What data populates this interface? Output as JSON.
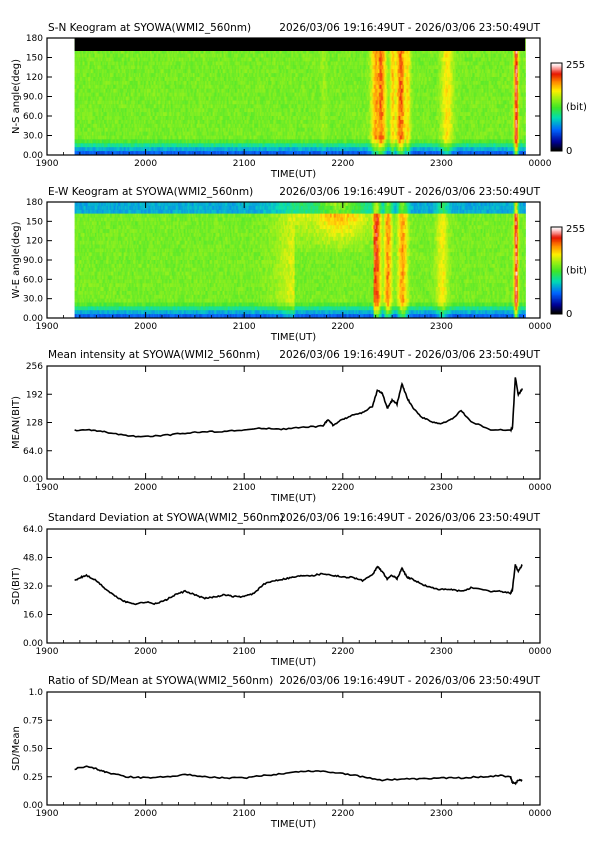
{
  "chart_data": [
    {
      "type": "heatmap",
      "title": "S-N Keogram at SYOWA(WMI2_560nm)",
      "time_range": "2026/03/06 19:16:49UT - 2026/03/06 23:50:49UT",
      "xlabel": "TIME(UT)",
      "ylabel": "N-S angle(deg)",
      "x_ticks": [
        "1900",
        "2000",
        "2100",
        "2200",
        "2300",
        "0000"
      ],
      "y_ticks": [
        "0.00",
        "30.0",
        "60.0",
        "90.0",
        "120",
        "150",
        "180"
      ],
      "ylim": [
        0,
        180
      ],
      "colorbar": {
        "min_label": "0",
        "max_label": "255",
        "unit_label": "(bit)"
      },
      "data_start_hour": 19.28,
      "data_end_hour": 23.85,
      "bright_bands": [
        {
          "t": 21.8,
          "w": 0.03,
          "v": 150
        },
        {
          "t": 22.33,
          "w": 0.05,
          "v": 200
        },
        {
          "t": 22.38,
          "w": 0.05,
          "v": 215
        },
        {
          "t": 22.5,
          "w": 0.03,
          "v": 190
        },
        {
          "t": 22.58,
          "w": 0.05,
          "v": 215
        },
        {
          "t": 22.65,
          "w": 0.03,
          "v": 185
        },
        {
          "t": 23.05,
          "w": 0.06,
          "v": 180
        },
        {
          "t": 23.75,
          "w": 0.02,
          "v": 245
        }
      ]
    },
    {
      "type": "heatmap",
      "title": "E-W Keogram at SYOWA(WMI2_560nm)",
      "time_range": "2026/03/06 19:16:49UT - 2026/03/06 23:50:49UT",
      "xlabel": "TIME(UT)",
      "ylabel": "W-E angle(deg)",
      "x_ticks": [
        "1900",
        "2000",
        "2100",
        "2200",
        "2300",
        "0000"
      ],
      "y_ticks": [
        "0.00",
        "30.0",
        "60.0",
        "90.0",
        "120",
        "150",
        "180"
      ],
      "ylim": [
        0,
        180
      ],
      "colorbar": {
        "min_label": "0",
        "max_label": "255",
        "unit_label": "(bit)"
      },
      "data_start_hour": 19.28,
      "data_end_hour": 23.85,
      "bright_bands": [
        {
          "t": 21.6,
          "w": 0.25,
          "v": 175
        },
        {
          "t": 21.95,
          "w": 0.3,
          "v": 210
        },
        {
          "t": 22.33,
          "w": 0.05,
          "v": 225
        },
        {
          "t": 22.45,
          "w": 0.04,
          "v": 205
        },
        {
          "t": 22.6,
          "w": 0.05,
          "v": 200
        },
        {
          "t": 23.0,
          "w": 0.06,
          "v": 175
        },
        {
          "t": 23.75,
          "w": 0.02,
          "v": 245
        }
      ]
    },
    {
      "type": "line",
      "title": "Mean intensity at SYOWA(WMI2_560nm)",
      "time_range": "2026/03/06 19:16:49UT - 2026/03/06 23:50:49UT",
      "xlabel": "TIME(UT)",
      "ylabel": "MEAN(BIT)",
      "x_ticks": [
        "1900",
        "2000",
        "2100",
        "2200",
        "2300",
        "0000"
      ],
      "y_ticks": [
        "0.00",
        "64.0",
        "128",
        "192",
        "256"
      ],
      "ylim": [
        0,
        256
      ],
      "series": [
        {
          "x": [
            19.28,
            19.45,
            19.6,
            19.8,
            20.0,
            20.2,
            20.4,
            20.6,
            20.8,
            21.0,
            21.2,
            21.4,
            21.6,
            21.8,
            21.85,
            21.9,
            22.0,
            22.1,
            22.2,
            22.3,
            22.35,
            22.4,
            22.45,
            22.5,
            22.55,
            22.6,
            22.65,
            22.7,
            22.8,
            22.9,
            23.0,
            23.1,
            23.2,
            23.3,
            23.5,
            23.7,
            23.72,
            23.75,
            23.78,
            23.82
          ],
          "y": [
            110,
            111,
            106,
            98,
            96,
            99,
            104,
            107,
            108,
            111,
            115,
            113,
            117,
            120,
            135,
            122,
            135,
            145,
            150,
            165,
            200,
            195,
            160,
            178,
            170,
            215,
            185,
            165,
            140,
            130,
            125,
            135,
            155,
            130,
            112,
            110,
            115,
            230,
            190,
            205
          ]
        }
      ]
    },
    {
      "type": "line",
      "title": "Standard Deviation at SYOWA(WMI2_560nm)",
      "time_range": "2026/03/06 19:16:49UT - 2026/03/06 23:50:49UT",
      "xlabel": "TIME(UT)",
      "ylabel": "SD(BIT)",
      "x_ticks": [
        "1900",
        "2000",
        "2100",
        "2200",
        "2300",
        "0000"
      ],
      "y_ticks": [
        "0.00",
        "16.0",
        "32.0",
        "48.0",
        "64.0"
      ],
      "ylim": [
        0,
        64
      ],
      "series": [
        {
          "x": [
            19.28,
            19.35,
            19.4,
            19.5,
            19.6,
            19.7,
            19.8,
            19.9,
            20.0,
            20.1,
            20.2,
            20.3,
            20.4,
            20.5,
            20.6,
            20.7,
            20.8,
            20.9,
            21.0,
            21.1,
            21.2,
            21.3,
            21.4,
            21.5,
            21.6,
            21.7,
            21.8,
            21.9,
            22.0,
            22.1,
            22.2,
            22.3,
            22.35,
            22.4,
            22.45,
            22.5,
            22.55,
            22.6,
            22.65,
            22.7,
            22.8,
            22.9,
            23.0,
            23.1,
            23.2,
            23.3,
            23.5,
            23.6,
            23.7,
            23.72,
            23.75,
            23.78,
            23.82
          ],
          "y": [
            35,
            37,
            38,
            35,
            30,
            26,
            23,
            22,
            23,
            22,
            24,
            27,
            29,
            27,
            25,
            26,
            27,
            26,
            26,
            28,
            33,
            35,
            36,
            37,
            38,
            38,
            39,
            38,
            37,
            37,
            35,
            38,
            43,
            40,
            36,
            38,
            36,
            42,
            37,
            36,
            33,
            31,
            30,
            30,
            29,
            31,
            29,
            29,
            28,
            30,
            44,
            40,
            44
          ]
        }
      ]
    },
    {
      "type": "line",
      "title": "Ratio of SD/Mean at SYOWA(WMI2_560nm)",
      "time_range": "2026/03/06 19:16:49UT - 2026/03/06 23:50:49UT",
      "xlabel": "TIME(UT)",
      "ylabel": "SD/Mean",
      "x_ticks": [
        "1900",
        "2000",
        "2100",
        "2200",
        "2300",
        "0000"
      ],
      "y_ticks": [
        "0.00",
        "0.25",
        "0.50",
        "0.75",
        "1.0"
      ],
      "ylim": [
        0,
        1
      ],
      "series": [
        {
          "x": [
            19.28,
            19.4,
            19.5,
            19.6,
            19.8,
            20.0,
            20.2,
            20.4,
            20.6,
            20.8,
            21.0,
            21.2,
            21.4,
            21.6,
            21.8,
            22.0,
            22.2,
            22.4,
            22.6,
            22.8,
            23.0,
            23.2,
            23.4,
            23.6,
            23.7,
            23.72,
            23.75,
            23.78,
            23.82
          ],
          "y": [
            0.32,
            0.34,
            0.32,
            0.29,
            0.25,
            0.24,
            0.25,
            0.27,
            0.25,
            0.24,
            0.24,
            0.26,
            0.28,
            0.3,
            0.3,
            0.28,
            0.25,
            0.22,
            0.23,
            0.23,
            0.24,
            0.24,
            0.25,
            0.26,
            0.25,
            0.2,
            0.19,
            0.22,
            0.22
          ]
        }
      ]
    }
  ]
}
